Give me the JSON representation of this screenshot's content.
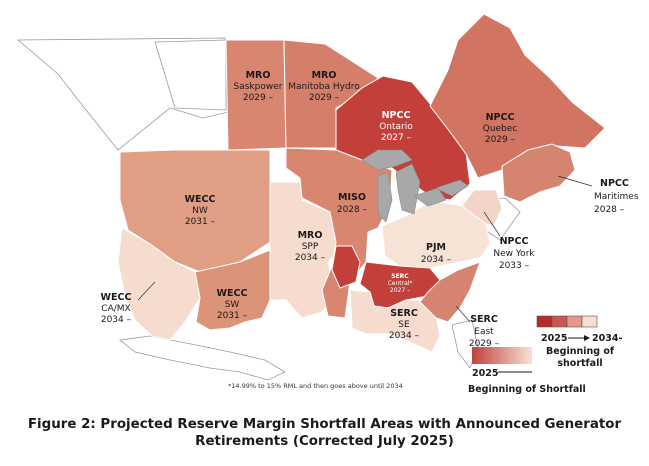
{
  "regions": [
    {
      "id": "mro-sask",
      "name": "MRO",
      "sub": "Saskpower",
      "year": "2029 –",
      "color": "#d88670"
    },
    {
      "id": "mro-manitoba",
      "name": "MRO",
      "sub": "Manitoba Hydro",
      "year": "2029 –",
      "color": "#d57e69"
    },
    {
      "id": "npcc-ontario",
      "name": "NPCC",
      "sub": "Ontario",
      "year": "2027 –",
      "color": "#c3403a"
    },
    {
      "id": "npcc-quebec",
      "name": "NPCC",
      "sub": "Quebec",
      "year": "2029 –",
      "color": "#d27462"
    },
    {
      "id": "npcc-maritimes",
      "name": "NPCC",
      "sub": "Maritimes",
      "year": "2028 –",
      "color": "#d58470"
    },
    {
      "id": "npcc-newyork",
      "name": "NPCC",
      "sub": "New York",
      "year": "2033 –",
      "color": "#f2d5c8"
    },
    {
      "id": "wecc-nw",
      "name": "WECC",
      "sub": "NW",
      "year": "2031 –",
      "color": "#e09f85"
    },
    {
      "id": "wecc-camx",
      "name": "WECC",
      "sub": "CA/MX",
      "year": "2034 –",
      "color": "#f5dccf"
    },
    {
      "id": "wecc-sw",
      "name": "WECC",
      "sub": "SW",
      "year": "2031 –",
      "color": "#dc9478"
    },
    {
      "id": "mro-spp",
      "name": "MRO",
      "sub": "SPP",
      "year": "2034 –",
      "color": "#f5dccf"
    },
    {
      "id": "miso",
      "name": "MISO",
      "sub": "",
      "year": "2028 –",
      "color": "#d88670"
    },
    {
      "id": "pjm",
      "name": "PJM",
      "sub": "",
      "year": "2034 –",
      "color": "#f7e2d6"
    },
    {
      "id": "serc-central",
      "name": "SERC",
      "sub": "Central*",
      "year": "2027 –",
      "color": "#c3403a"
    },
    {
      "id": "serc-se",
      "name": "SERC",
      "sub": "SE",
      "year": "2034 –",
      "color": "#f5dccf"
    },
    {
      "id": "serc-east",
      "name": "SERC",
      "sub": "East",
      "year": "2029 –",
      "color": "#d58470"
    }
  ],
  "legend_steps": {
    "start_label": "2025",
    "end_label": "2034-",
    "title_line1": "Beginning of",
    "title_line2": "shortfall",
    "colors": [
      "#b52a2d",
      "#cc5650",
      "#e39a8a",
      "#f7ddd2"
    ]
  },
  "legend_gradient": {
    "label": "2025",
    "title": "Beginning of Shortfall",
    "color_start": "#c3403a",
    "color_end": "#f7e2d6"
  },
  "footnote": "*14.99% to 15% RML and then goes above until 2034",
  "caption_line1": "Figure 2: Projected Reserve Margin Shortfall Areas with Announced Generator",
  "caption_line2": "Retirements (Corrected July 2025)"
}
